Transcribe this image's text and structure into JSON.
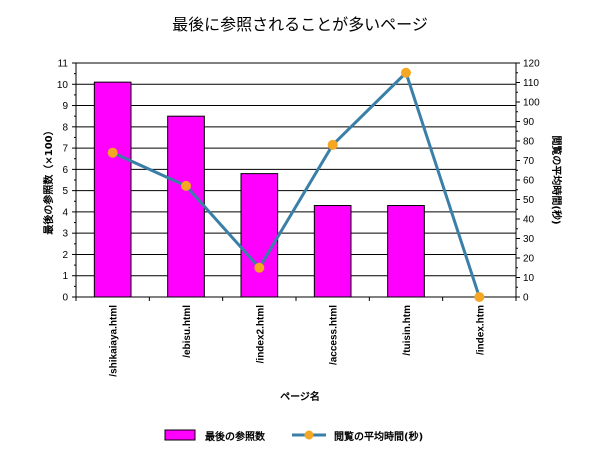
{
  "chart_data": {
    "type": "bar",
    "title": "最後に参照されることが多いページ",
    "xlabel": "ページ名",
    "ylabel": "最後の参照数（×100）",
    "y2label": "閲覧の平均時間(秒)",
    "categories": [
      "/shikaiaya.html",
      "/ebisu.html",
      "/index2.html",
      "/access.html",
      "/tuisin.htm",
      "/index.htm"
    ],
    "series": [
      {
        "name": "最後の参照数",
        "type": "bar",
        "axis": "left",
        "color": "#ff00ff",
        "values": [
          10.1,
          8.5,
          5.8,
          4.3,
          4.3,
          0
        ]
      },
      {
        "name": "閲覧の平均時間(秒)",
        "type": "line",
        "axis": "right",
        "color": "#3a7fa8",
        "marker_color": "#f5a623",
        "values": [
          74,
          57,
          15,
          78,
          115,
          0
        ]
      }
    ],
    "ylim": [
      0,
      11
    ],
    "y2lim": [
      0,
      120
    ],
    "yticks": [
      "0",
      "1",
      "2",
      "3",
      "4",
      "5",
      "6",
      "7",
      "8",
      "9",
      "10",
      "11"
    ],
    "y2ticks": [
      "0",
      "10",
      "20",
      "30",
      "40",
      "50",
      "60",
      "70",
      "80",
      "90",
      "100",
      "110",
      "120"
    ],
    "grid": true,
    "legend_position": "bottom"
  }
}
